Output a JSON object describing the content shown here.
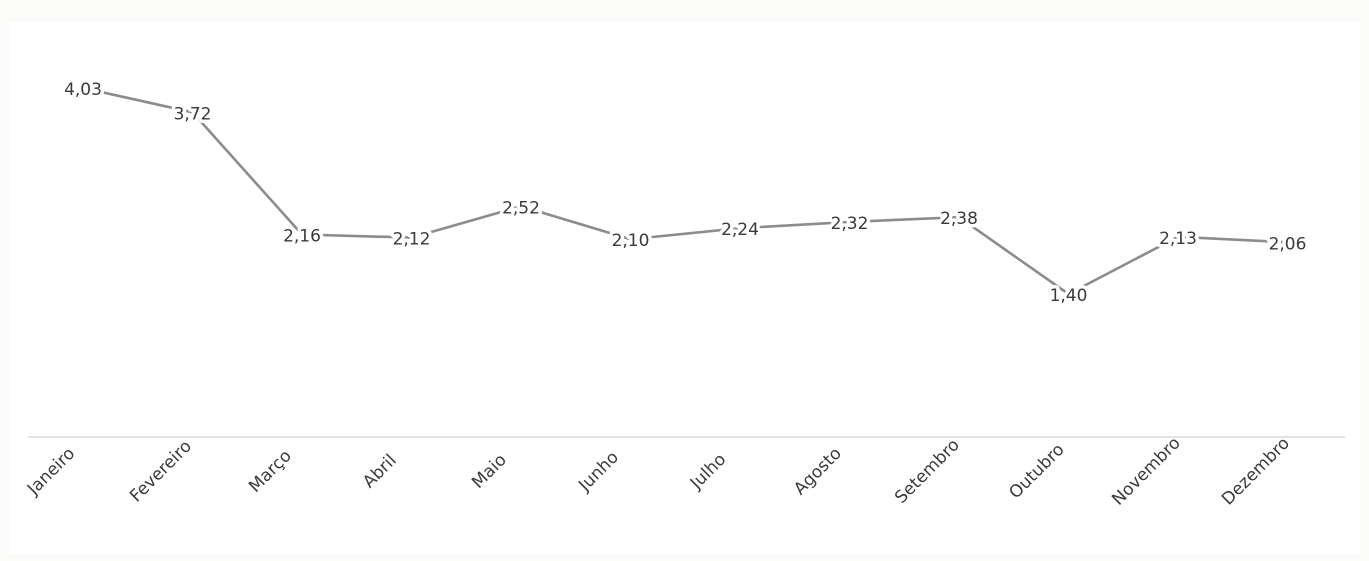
{
  "chart_data": {
    "type": "line",
    "title": "",
    "xlabel": "",
    "ylabel": "",
    "categories": [
      "Janeiro",
      "Fevereiro",
      "Março",
      "Abril",
      "Maio",
      "Junho",
      "Julho",
      "Agosto",
      "Setembro",
      "Outubro",
      "Novembro",
      "Dezembro"
    ],
    "series": [
      {
        "values": [
          4.03,
          3.72,
          2.16,
          2.12,
          2.52,
          2.1,
          2.24,
          2.32,
          2.38,
          1.4,
          2.13,
          2.06
        ],
        "data_labels": [
          "4,03",
          "3,72",
          "2,16",
          "2,12",
          "2,52",
          "2,10",
          "2,24",
          "2,32",
          "2,38",
          "1,40",
          "2,13",
          "2,06"
        ]
      }
    ],
    "grid": false,
    "legend": "none",
    "line_color": "#8c8c8c",
    "axis_color": "#dcdcdc",
    "label_color": "#3a3a3a"
  }
}
